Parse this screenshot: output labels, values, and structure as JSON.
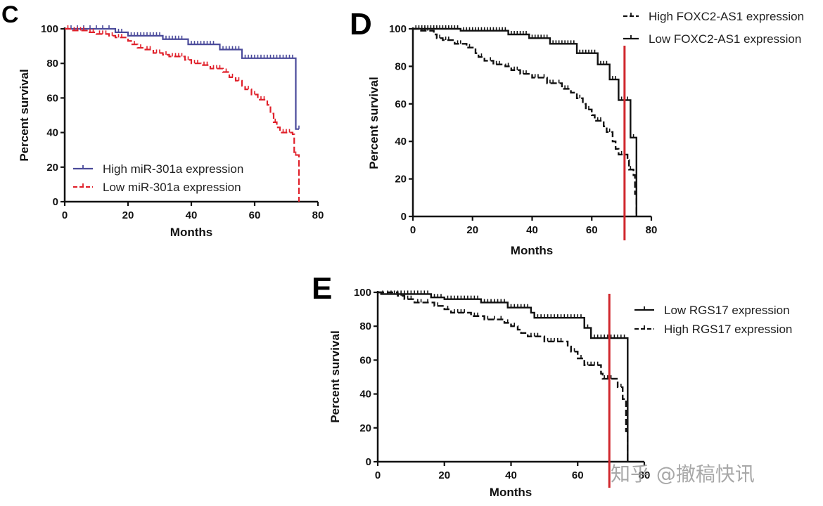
{
  "watermark": "知乎 @撤稿快讯",
  "chart_data": [
    {
      "panel": "C",
      "type": "line",
      "subtype": "kaplan-meier",
      "title": "",
      "xlabel": "Months",
      "ylabel": "Percent survival",
      "xlim": [
        0,
        80
      ],
      "ylim": [
        0,
        100
      ],
      "xticks": [
        0,
        20,
        40,
        60,
        80
      ],
      "yticks": [
        0,
        20,
        40,
        60,
        80,
        100
      ],
      "grid": false,
      "legend_position": "bottom-left",
      "series": [
        {
          "name": "High miR-301a expression",
          "color": "#4a4a9a",
          "dash": "solid",
          "steps": [
            [
              0,
              100
            ],
            [
              16,
              98
            ],
            [
              20,
              96
            ],
            [
              31,
              94
            ],
            [
              39,
              91
            ],
            [
              49,
              88
            ],
            [
              56,
              83
            ],
            [
              73,
              42
            ],
            [
              74,
              42
            ]
          ],
          "censor": [
            2,
            4,
            6,
            8,
            10,
            12,
            14,
            17,
            18,
            21,
            22,
            23,
            24,
            25,
            26,
            27,
            28,
            29,
            30,
            32,
            33,
            34,
            35,
            36,
            37,
            40,
            41,
            42,
            43,
            44,
            45,
            46,
            47,
            50,
            51,
            52,
            53,
            54,
            55,
            57,
            58,
            59,
            60,
            61,
            62,
            63,
            64,
            65,
            66,
            67,
            68,
            69,
            70,
            71,
            72,
            74
          ]
        },
        {
          "name": "Low miR-301a expression",
          "color": "#e0202a",
          "dash": "dashed",
          "steps": [
            [
              0,
              100
            ],
            [
              2,
              99
            ],
            [
              7,
              98
            ],
            [
              10,
              97
            ],
            [
              14,
              96
            ],
            [
              16,
              95
            ],
            [
              20,
              93
            ],
            [
              21,
              91
            ],
            [
              23,
              89
            ],
            [
              25,
              88
            ],
            [
              28,
              86
            ],
            [
              31,
              85
            ],
            [
              33,
              84
            ],
            [
              38,
              82
            ],
            [
              40,
              80
            ],
            [
              43,
              79
            ],
            [
              46,
              77
            ],
            [
              50,
              75
            ],
            [
              52,
              72
            ],
            [
              54,
              70
            ],
            [
              56,
              67
            ],
            [
              57,
              65
            ],
            [
              59,
              62
            ],
            [
              61,
              59
            ],
            [
              64,
              56
            ],
            [
              65,
              51
            ],
            [
              66,
              46
            ],
            [
              67,
              43
            ],
            [
              68,
              40
            ],
            [
              72,
              39
            ],
            [
              72.5,
              27
            ],
            [
              74,
              27
            ],
            [
              74,
              0
            ]
          ],
          "censor": [
            1,
            3,
            4,
            5,
            6,
            8,
            9,
            11,
            12,
            13,
            15,
            17,
            18,
            22,
            24,
            26,
            27,
            29,
            30,
            32,
            34,
            35,
            36,
            37,
            39,
            41,
            42,
            44,
            45,
            47,
            48,
            49,
            51,
            53,
            55,
            58,
            60,
            62,
            63,
            66.5,
            69,
            70,
            71,
            73
          ]
        }
      ]
    },
    {
      "panel": "D",
      "type": "line",
      "subtype": "kaplan-meier",
      "title": "",
      "xlabel": "Months",
      "ylabel": "Percent survival",
      "xlim": [
        0,
        80
      ],
      "ylim": [
        0,
        100
      ],
      "xticks": [
        0,
        20,
        40,
        60,
        80
      ],
      "yticks": [
        0,
        20,
        40,
        60,
        80,
        100
      ],
      "grid": false,
      "legend_position": "top-right",
      "reference_line": {
        "x": 71,
        "color": "#d0262c"
      },
      "series": [
        {
          "name": "High FOXC2-AS1 expression",
          "color": "#111111",
          "dash": "dashed",
          "steps": [
            [
              0,
              100
            ],
            [
              2,
              99
            ],
            [
              7,
              97
            ],
            [
              8,
              95
            ],
            [
              10,
              94
            ],
            [
              14,
              92
            ],
            [
              18,
              90
            ],
            [
              21,
              87
            ],
            [
              22,
              85
            ],
            [
              24,
              83
            ],
            [
              27,
              81
            ],
            [
              31,
              80
            ],
            [
              33,
              78
            ],
            [
              36,
              76
            ],
            [
              40,
              74
            ],
            [
              45,
              71
            ],
            [
              48,
              71
            ],
            [
              50,
              68
            ],
            [
              53,
              66
            ],
            [
              55,
              63
            ],
            [
              57,
              60
            ],
            [
              58,
              57
            ],
            [
              60,
              54
            ],
            [
              61,
              51
            ],
            [
              64,
              48
            ],
            [
              65,
              45
            ],
            [
              67,
              40
            ],
            [
              68,
              36
            ],
            [
              69,
              33
            ],
            [
              72,
              30
            ],
            [
              72.5,
              25
            ],
            [
              74,
              22
            ],
            [
              74.5,
              12
            ],
            [
              75,
              12
            ],
            [
              75,
              0
            ]
          ],
          "censor": [
            3,
            4,
            5,
            9,
            11,
            12,
            15,
            16,
            19,
            23,
            26,
            28,
            29,
            32,
            34,
            35,
            37,
            38,
            41,
            42,
            44,
            46,
            47,
            49,
            51,
            52,
            56,
            59,
            62,
            63,
            66,
            70,
            71,
            73
          ]
        },
        {
          "name": "Low FOXC2-AS1 expression",
          "color": "#111111",
          "dash": "solid",
          "steps": [
            [
              0,
              100
            ],
            [
              16,
              99
            ],
            [
              32,
              97
            ],
            [
              39,
              95
            ],
            [
              46,
              92
            ],
            [
              55,
              87
            ],
            [
              62,
              81
            ],
            [
              66,
              73
            ],
            [
              69,
              62
            ],
            [
              73,
              42
            ],
            [
              75,
              42
            ],
            [
              75,
              0
            ]
          ],
          "censor": [
            1,
            2,
            3,
            4,
            5,
            6,
            7,
            8,
            9,
            10,
            11,
            12,
            13,
            14,
            15,
            17,
            18,
            19,
            20,
            21,
            22,
            23,
            24,
            25,
            26,
            27,
            28,
            29,
            30,
            31,
            33,
            34,
            35,
            36,
            37,
            38,
            40,
            41,
            42,
            43,
            44,
            45,
            47,
            48,
            49,
            50,
            51,
            52,
            53,
            54,
            56,
            57,
            58,
            59,
            60,
            61,
            63,
            64,
            65,
            67,
            68,
            70,
            71,
            72,
            74
          ]
        }
      ]
    },
    {
      "panel": "E",
      "type": "line",
      "subtype": "kaplan-meier",
      "title": "",
      "xlabel": "Months",
      "ylabel": "Percent survival",
      "xlim": [
        0,
        80
      ],
      "ylim": [
        0,
        100
      ],
      "xticks": [
        0,
        20,
        40,
        60,
        80
      ],
      "yticks": [
        0,
        20,
        40,
        60,
        80,
        100
      ],
      "grid": false,
      "legend_position": "top-right",
      "reference_line": {
        "x": 69.5,
        "color": "#d0262c"
      },
      "series": [
        {
          "name": "Low RGS17 expression",
          "color": "#111111",
          "dash": "solid",
          "steps": [
            [
              0,
              100
            ],
            [
              1,
              99
            ],
            [
              16,
              97
            ],
            [
              20,
              96
            ],
            [
              31,
              94
            ],
            [
              39,
              91
            ],
            [
              46,
              88
            ],
            [
              47,
              85
            ],
            [
              62,
              79
            ],
            [
              64,
              73
            ],
            [
              75,
              73
            ],
            [
              75,
              0
            ]
          ],
          "censor": [
            1.5,
            3,
            4,
            5,
            6,
            7,
            8,
            9,
            10,
            11,
            12,
            13,
            14,
            15,
            17,
            18,
            19,
            21,
            22,
            23,
            24,
            25,
            26,
            27,
            28,
            29,
            30,
            32,
            33,
            34,
            35,
            36,
            37,
            38,
            40,
            41,
            42,
            43,
            44,
            45,
            48,
            49,
            50,
            51,
            52,
            53,
            54,
            55,
            56,
            57,
            58,
            59,
            60,
            61,
            63,
            65,
            66,
            67,
            68,
            69,
            70,
            71,
            72,
            73,
            74
          ]
        },
        {
          "name": "High RGS17 expression",
          "color": "#111111",
          "dash": "dashed",
          "steps": [
            [
              0,
              100
            ],
            [
              6,
              98
            ],
            [
              8,
              96
            ],
            [
              11,
              94
            ],
            [
              17,
              92
            ],
            [
              20,
              90
            ],
            [
              22,
              88
            ],
            [
              28,
              86
            ],
            [
              32,
              84
            ],
            [
              38,
              82
            ],
            [
              40,
              80
            ],
            [
              42,
              78
            ],
            [
              43,
              76
            ],
            [
              45,
              74
            ],
            [
              50,
              71
            ],
            [
              57,
              68
            ],
            [
              58,
              65
            ],
            [
              60,
              61
            ],
            [
              62,
              57
            ],
            [
              67,
              52
            ],
            [
              67.5,
              49
            ],
            [
              71,
              49
            ],
            [
              72,
              44
            ],
            [
              73.5,
              37
            ],
            [
              74.5,
              18
            ],
            [
              75,
              18
            ],
            [
              75,
              0
            ]
          ],
          "censor": [
            7,
            9,
            10,
            12,
            13,
            15,
            18,
            21,
            23,
            24,
            25,
            26,
            29,
            30,
            33,
            35,
            37,
            39,
            41,
            46,
            47,
            48,
            51,
            52,
            53,
            54,
            55,
            59,
            61,
            63,
            64,
            65,
            66,
            68,
            69,
            70,
            73
          ]
        }
      ]
    }
  ]
}
